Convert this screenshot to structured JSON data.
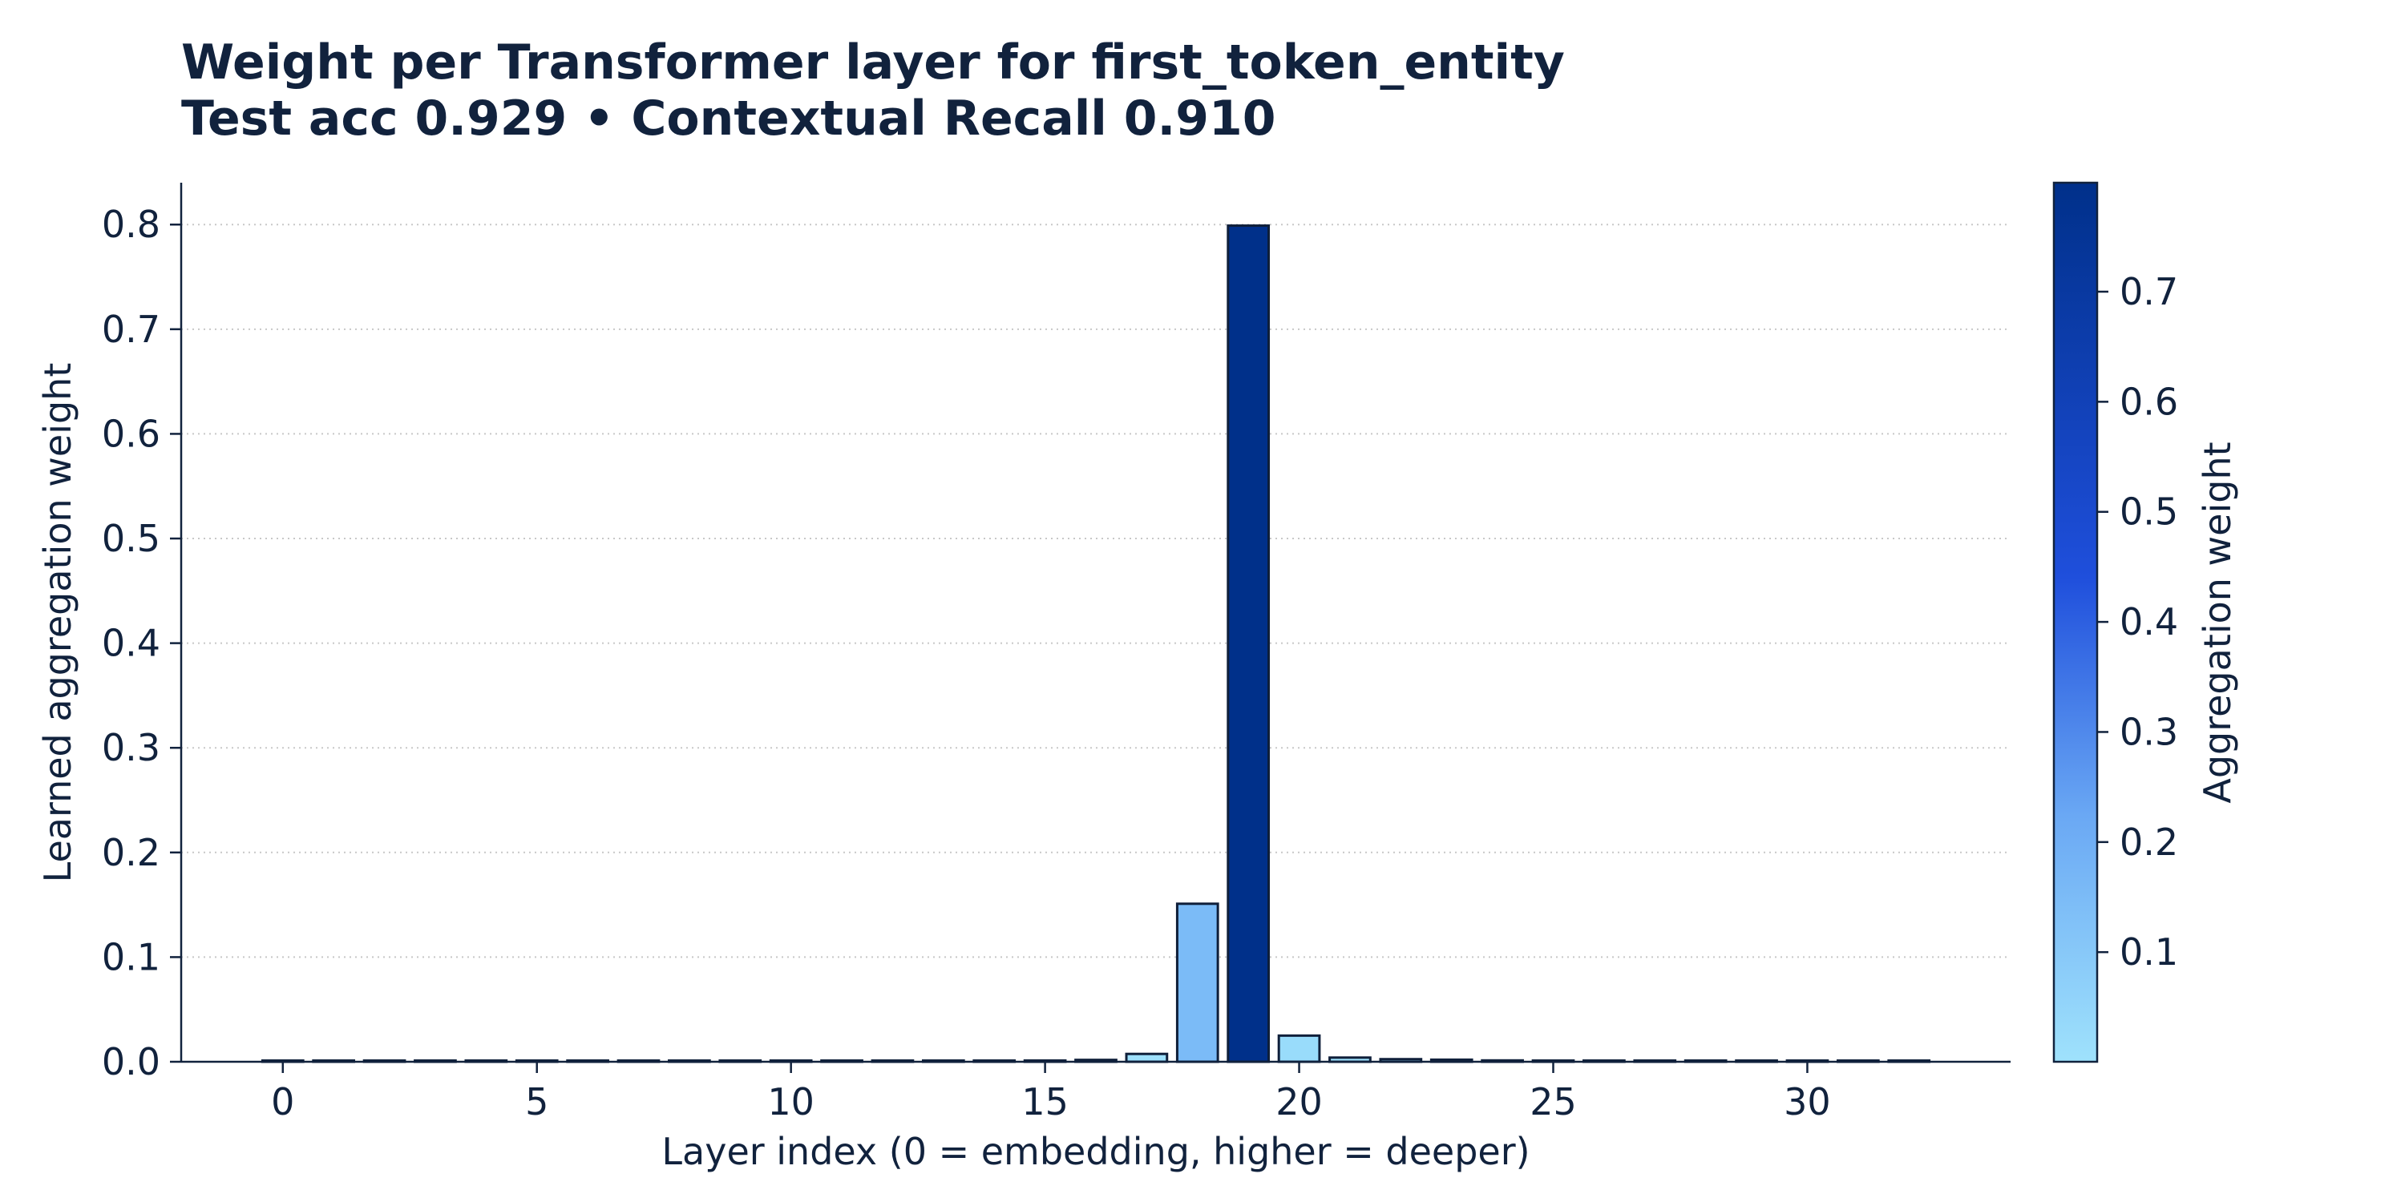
{
  "chart_data": {
    "type": "bar",
    "title": "Weight per Transformer layer for first_token_entity",
    "subtitle": "Test acc 0.929 • Contextual Recall 0.910",
    "xlabel": "Layer index (0 = embedding, higher = deeper)",
    "ylabel": "Learned aggregation weight",
    "x": [
      0,
      1,
      2,
      3,
      4,
      5,
      6,
      7,
      8,
      9,
      10,
      11,
      12,
      13,
      14,
      15,
      16,
      17,
      18,
      19,
      20,
      21,
      22,
      23,
      24,
      25,
      26,
      27,
      28,
      29,
      30,
      31,
      32
    ],
    "values": [
      0.0005,
      0.0004,
      0.0004,
      0.0004,
      0.0004,
      0.0004,
      0.0004,
      0.0004,
      0.0004,
      0.0004,
      0.0004,
      0.0004,
      0.0004,
      0.0005,
      0.0006,
      0.0012,
      0.0018,
      0.0075,
      0.151,
      0.799,
      0.025,
      0.004,
      0.0025,
      0.002,
      0.0013,
      0.0011,
      0.001,
      0.0009,
      0.0008,
      0.0008,
      0.0009,
      0.0006,
      0.0005
    ],
    "xlim": [
      -2,
      34
    ],
    "ylim": [
      0,
      0.84
    ],
    "x_ticks": [
      0,
      5,
      10,
      15,
      20,
      25,
      30
    ],
    "y_ticks": [
      0.0,
      0.1,
      0.2,
      0.3,
      0.4,
      0.5,
      0.6,
      0.7,
      0.8
    ],
    "grid": "horizontal-dotted",
    "colorbar": {
      "label": "Aggregation weight",
      "range": [
        0.0004,
        0.799
      ],
      "ticks": [
        0.1,
        0.2,
        0.3,
        0.4,
        0.5,
        0.6,
        0.7
      ],
      "colors": [
        "#9fe2fc",
        "#6aa8f4",
        "#1f4fdc",
        "#00308a"
      ]
    },
    "colors": {
      "text": "#11223d",
      "edge": "#0f1f3a",
      "grid": "#c8c8c8"
    }
  }
}
